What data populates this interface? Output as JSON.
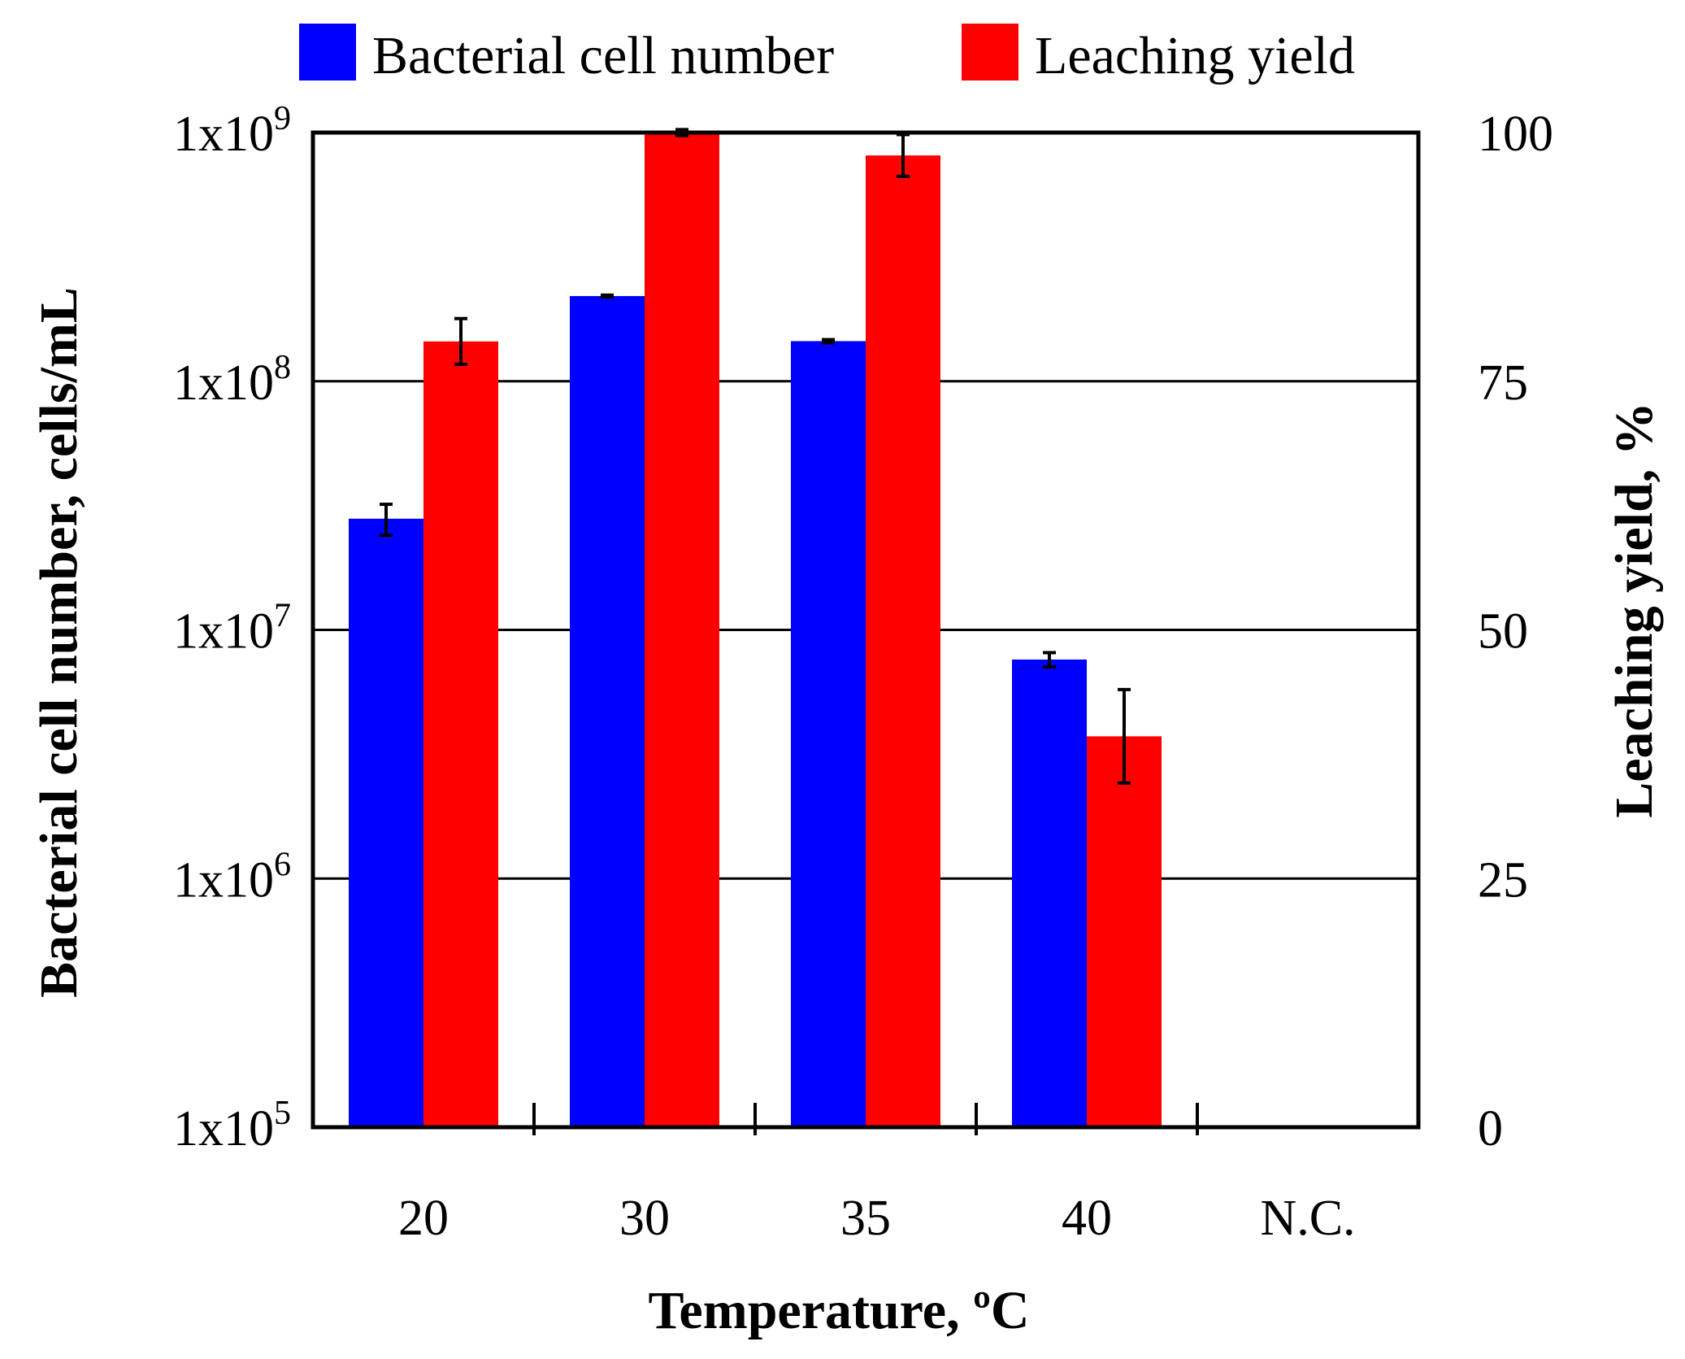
{
  "chart_data": {
    "type": "bar",
    "categories": [
      "20",
      "30",
      "35",
      "40",
      "N.C."
    ],
    "xlabel": "Temperature, ºC",
    "legend_position": "top",
    "series": [
      {
        "name": "Bacterial cell number",
        "axis": "left",
        "color": "#0000ff",
        "values": [
          28000000,
          220000000,
          145000000,
          7600000,
          null
        ],
        "errors": [
          4000000,
          2000000,
          2000000,
          500000,
          null
        ]
      },
      {
        "name": "Leaching yield",
        "axis": "right",
        "color": "#ff0000",
        "values": [
          79,
          100,
          97.7,
          39.3,
          null
        ],
        "errors": [
          2.3,
          0.3,
          2.1,
          4.7,
          null
        ]
      }
    ],
    "y_left": {
      "label": "Bacterial cell number, cells/mL",
      "scale": "log",
      "range": [
        100000,
        1000000000
      ],
      "ticks": [
        {
          "value": 100000,
          "base": "1x10",
          "exp": "5"
        },
        {
          "value": 1000000,
          "base": "1x10",
          "exp": "6"
        },
        {
          "value": 10000000,
          "base": "1x10",
          "exp": "7"
        },
        {
          "value": 100000000,
          "base": "1x10",
          "exp": "8"
        },
        {
          "value": 1000000000,
          "base": "1x10",
          "exp": "9"
        }
      ]
    },
    "y_right": {
      "label": "Leaching yield, %",
      "scale": "linear",
      "range": [
        0,
        100
      ],
      "ticks": [
        "0",
        "25",
        "50",
        "75",
        "100"
      ]
    },
    "grid": true
  }
}
